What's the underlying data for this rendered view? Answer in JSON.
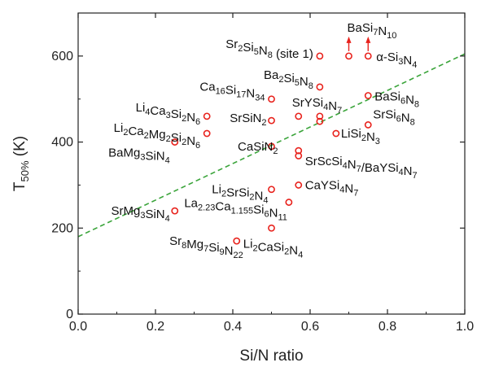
{
  "chart_data": {
    "type": "scatter",
    "xlabel": "Si/N ratio",
    "ylabel": {
      "base": "T",
      "sub": "50%",
      "tail": " (K)"
    },
    "xlim": [
      0.0,
      1.0
    ],
    "ylim": [
      0,
      700
    ],
    "xticks": [
      "0.0",
      "0.2",
      "0.4",
      "0.6",
      "0.8",
      "1.0"
    ],
    "yticks": [
      "0",
      "200",
      "400",
      "600"
    ],
    "grid": false,
    "marker_color": "#e8221c",
    "trend_color": "#3aa43a",
    "trendline": {
      "style": "dashed",
      "x": [
        0.0,
        1.0
      ],
      "y": [
        180,
        605
      ]
    },
    "points": [
      {
        "x": 0.7,
        "y": 600,
        "label": [
          [
            "Ba",
            ""
          ],
          [
            "Si",
            "7"
          ],
          [
            "N",
            "10"
          ]
        ],
        "arrow": true
      },
      {
        "x": 0.75,
        "y": 600,
        "label": [
          [
            "α-Si",
            ""
          ],
          [
            "",
            "3"
          ],
          [
            "N",
            "4"
          ]
        ],
        "arrow": true
      },
      {
        "x": 0.625,
        "y": 600,
        "label": [
          [
            "Sr",
            "2"
          ],
          [
            "Si",
            "5"
          ],
          [
            "N",
            "8"
          ],
          [
            " (site 1)",
            ""
          ]
        ]
      },
      {
        "x": 0.625,
        "y": 528,
        "label": [
          [
            "Ba",
            "2"
          ],
          [
            "Si",
            "5"
          ],
          [
            "N",
            "8"
          ]
        ]
      },
      {
        "x": 0.75,
        "y": 508,
        "label": [
          [
            "BaSi",
            "6"
          ],
          [
            "N",
            "8"
          ]
        ]
      },
      {
        "x": 0.5,
        "y": 500,
        "label": [
          [
            "Ca",
            "16"
          ],
          [
            "Si",
            "17"
          ],
          [
            "N",
            "34"
          ]
        ]
      },
      {
        "x": 0.333,
        "y": 460,
        "label": [
          [
            "Li",
            "4"
          ],
          [
            "Ca",
            "3"
          ],
          [
            "Si",
            "2"
          ],
          [
            "N",
            "6"
          ]
        ]
      },
      {
        "x": 0.57,
        "y": 460,
        "label": [
          [
            "SrYSi",
            "4"
          ],
          [
            "N",
            "7"
          ]
        ]
      },
      {
        "x": 0.5,
        "y": 450,
        "label": [
          [
            "SrSiN",
            "2"
          ]
        ]
      },
      {
        "x": 0.625,
        "y": 460,
        "label": []
      },
      {
        "x": 0.625,
        "y": 448,
        "label": []
      },
      {
        "x": 0.75,
        "y": 440,
        "label": [
          [
            "SrSi",
            "6"
          ],
          [
            "N",
            "8"
          ]
        ]
      },
      {
        "x": 0.333,
        "y": 420,
        "label": [
          [
            "Li",
            "2"
          ],
          [
            "Ca",
            "2"
          ],
          [
            "Mg",
            "2"
          ],
          [
            "Si",
            "2"
          ],
          [
            "N",
            "6"
          ]
        ]
      },
      {
        "x": 0.667,
        "y": 420,
        "label": [
          [
            "LiSi",
            "2"
          ],
          [
            "N",
            "3"
          ]
        ]
      },
      {
        "x": 0.25,
        "y": 400,
        "label": [
          [
            "BaMg",
            "3"
          ],
          [
            "SiN",
            "4"
          ]
        ]
      },
      {
        "x": 0.5,
        "y": 390,
        "label": [
          [
            "CaSiN",
            "2"
          ]
        ]
      },
      {
        "x": 0.57,
        "y": 380,
        "label": [
          [
            "SrScSi",
            "4"
          ],
          [
            "N",
            "7"
          ],
          [
            "/BaYSi",
            "4"
          ],
          [
            "N",
            "7"
          ]
        ]
      },
      {
        "x": 0.57,
        "y": 368,
        "label": []
      },
      {
        "x": 0.57,
        "y": 300,
        "label": [
          [
            "CaYSi",
            "4"
          ],
          [
            "N",
            "7"
          ]
        ]
      },
      {
        "x": 0.5,
        "y": 290,
        "label": [
          [
            "Li",
            "2"
          ],
          [
            "SrSi",
            "2"
          ],
          [
            "N",
            "4"
          ]
        ]
      },
      {
        "x": 0.545,
        "y": 260,
        "label": [
          [
            "La",
            "2.23"
          ],
          [
            "Ca",
            "1.155"
          ],
          [
            "Si",
            "6"
          ],
          [
            "N",
            "11"
          ]
        ]
      },
      {
        "x": 0.25,
        "y": 240,
        "label": [
          [
            "SrMg",
            "3"
          ],
          [
            "SiN",
            "4"
          ]
        ]
      },
      {
        "x": 0.5,
        "y": 200,
        "label": [
          [
            "Li",
            "2"
          ],
          [
            "CaSi",
            "2"
          ],
          [
            "N",
            "4"
          ]
        ]
      },
      {
        "x": 0.41,
        "y": 170,
        "label": [
          [
            "Sr",
            "8"
          ],
          [
            "Mg",
            "7"
          ],
          [
            "Si",
            "9"
          ],
          [
            "N",
            "22"
          ]
        ]
      }
    ]
  }
}
